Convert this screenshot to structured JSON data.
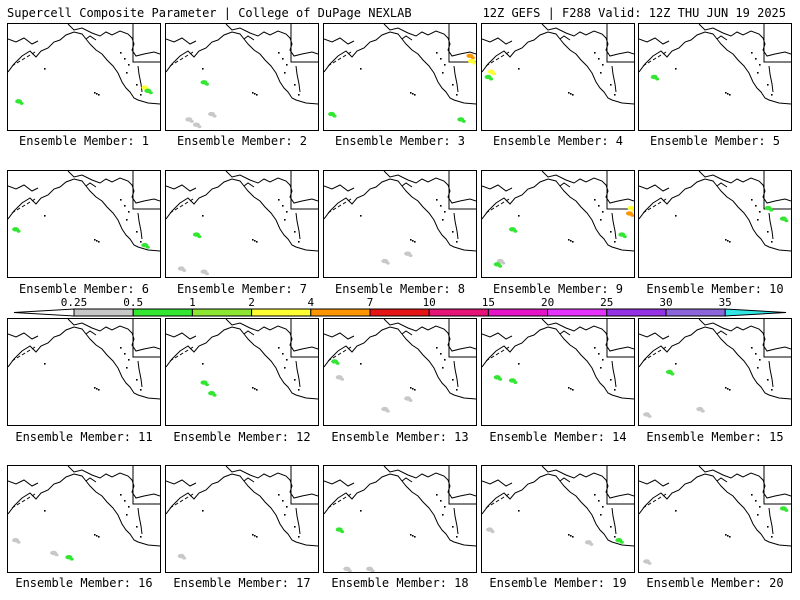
{
  "header": {
    "left_text": "Supercell Composite Parameter | College of DuPage NEXLAB",
    "right_text": "12Z GEFS | F288 Valid: 12Z THU JUN 19 2025"
  },
  "colorbar": {
    "ticks": [
      "0.25",
      "0.5",
      "1",
      "2",
      "4",
      "7",
      "10",
      "15",
      "20",
      "25",
      "30",
      "35"
    ],
    "colors": [
      "#ffffff",
      "#c8c8c8",
      "#32e632",
      "#8ce632",
      "#ffff32",
      "#ff9600",
      "#e61414",
      "#e61478",
      "#e614c8",
      "#e632ff",
      "#9632e6",
      "#8c64dc",
      "#32e6e6"
    ]
  },
  "panels": [
    {
      "label": "Ensemble Member: 1",
      "blobs": [
        [
          0.07,
          0.73,
          "#32e632"
        ],
        [
          0.9,
          0.6,
          "#ffff32"
        ],
        [
          0.92,
          0.63,
          "#32e632"
        ]
      ]
    },
    {
      "label": "Ensemble Member: 2",
      "blobs": [
        [
          0.15,
          0.9,
          "#c8c8c8"
        ],
        [
          0.25,
          0.55,
          "#32e632"
        ],
        [
          0.3,
          0.85,
          "#c8c8c8"
        ],
        [
          0.2,
          0.95,
          "#c8c8c8"
        ]
      ]
    },
    {
      "label": "Ensemble Member: 3",
      "blobs": [
        [
          0.96,
          0.3,
          "#ff9600"
        ],
        [
          0.97,
          0.35,
          "#ffff32"
        ],
        [
          0.9,
          0.9,
          "#32e632"
        ],
        [
          0.05,
          0.85,
          "#32e632"
        ]
      ]
    },
    {
      "label": "Ensemble Member: 4",
      "blobs": [
        [
          0.04,
          0.5,
          "#32e632"
        ],
        [
          0.06,
          0.45,
          "#ffff32"
        ]
      ]
    },
    {
      "label": "Ensemble Member: 5",
      "blobs": [
        [
          0.1,
          0.5,
          "#32e632"
        ]
      ]
    },
    {
      "label": "Ensemble Member: 6",
      "blobs": [
        [
          0.05,
          0.55,
          "#32e632"
        ],
        [
          0.9,
          0.7,
          "#32e632"
        ]
      ]
    },
    {
      "label": "Ensemble Member: 7",
      "blobs": [
        [
          0.2,
          0.6,
          "#32e632"
        ],
        [
          0.1,
          0.92,
          "#c8c8c8"
        ],
        [
          0.25,
          0.95,
          "#c8c8c8"
        ]
      ]
    },
    {
      "label": "Ensemble Member: 8",
      "blobs": [
        [
          0.4,
          0.85,
          "#c8c8c8"
        ],
        [
          0.55,
          0.78,
          "#c8c8c8"
        ]
      ]
    },
    {
      "label": "Ensemble Member: 9",
      "blobs": [
        [
          0.12,
          0.85,
          "#c8c8c8"
        ],
        [
          0.1,
          0.88,
          "#32e632"
        ],
        [
          0.2,
          0.55,
          "#32e632"
        ],
        [
          0.97,
          0.4,
          "#ff9600"
        ],
        [
          0.98,
          0.35,
          "#ffff32"
        ],
        [
          0.92,
          0.6,
          "#32e632"
        ]
      ]
    },
    {
      "label": "Ensemble Member: 10",
      "blobs": [
        [
          0.95,
          0.45,
          "#32e632"
        ],
        [
          0.85,
          0.35,
          "#32e632"
        ]
      ]
    },
    {
      "label": "Ensemble Member: 11",
      "blobs": []
    },
    {
      "label": "Ensemble Member: 12",
      "blobs": [
        [
          0.25,
          0.6,
          "#32e632"
        ],
        [
          0.3,
          0.7,
          "#32e632"
        ]
      ]
    },
    {
      "label": "Ensemble Member: 13",
      "blobs": [
        [
          0.07,
          0.4,
          "#32e632"
        ],
        [
          0.4,
          0.85,
          "#c8c8c8"
        ],
        [
          0.55,
          0.75,
          "#c8c8c8"
        ],
        [
          0.1,
          0.55,
          "#c8c8c8"
        ]
      ]
    },
    {
      "label": "Ensemble Member: 14",
      "blobs": [
        [
          0.1,
          0.55,
          "#32e632"
        ],
        [
          0.2,
          0.58,
          "#32e632"
        ]
      ]
    },
    {
      "label": "Ensemble Member: 15",
      "blobs": [
        [
          0.2,
          0.5,
          "#32e632"
        ],
        [
          0.05,
          0.9,
          "#c8c8c8"
        ],
        [
          0.4,
          0.85,
          "#c8c8c8"
        ]
      ]
    },
    {
      "label": "Ensemble Member: 16",
      "blobs": [
        [
          0.3,
          0.82,
          "#c8c8c8"
        ],
        [
          0.4,
          0.86,
          "#32e632"
        ],
        [
          0.05,
          0.7,
          "#c8c8c8"
        ]
      ]
    },
    {
      "label": "Ensemble Member: 17",
      "blobs": [
        [
          0.1,
          0.85,
          "#c8c8c8"
        ]
      ]
    },
    {
      "label": "Ensemble Member: 18",
      "blobs": [
        [
          0.1,
          0.6,
          "#32e632"
        ],
        [
          0.15,
          0.97,
          "#c8c8c8"
        ],
        [
          0.3,
          0.97,
          "#c8c8c8"
        ]
      ]
    },
    {
      "label": "Ensemble Member: 19",
      "blobs": [
        [
          0.7,
          0.72,
          "#c8c8c8"
        ],
        [
          0.9,
          0.7,
          "#32e632"
        ],
        [
          0.05,
          0.6,
          "#c8c8c8"
        ]
      ]
    },
    {
      "label": "Ensemble Member: 20",
      "blobs": [
        [
          0.95,
          0.4,
          "#32e632"
        ],
        [
          0.05,
          0.9,
          "#c8c8c8"
        ]
      ]
    }
  ]
}
